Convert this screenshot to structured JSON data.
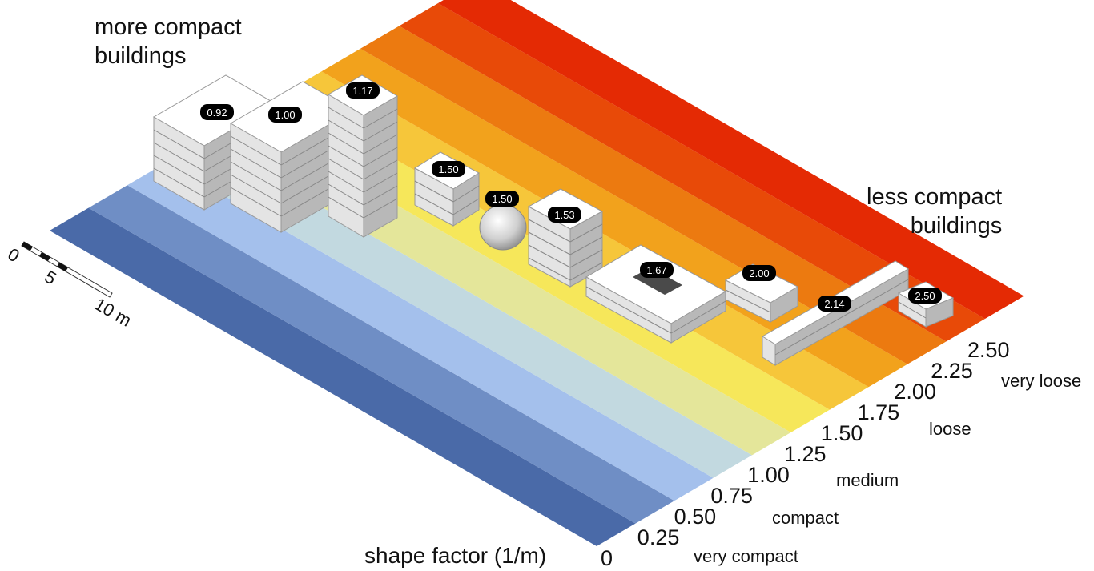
{
  "titles": {
    "more_compact_line1": "more compact",
    "more_compact_line2": "buildings",
    "less_compact_line1": "less compact",
    "less_compact_line2": "buildings",
    "axis_title": "shape factor (1/m)"
  },
  "scale_bar": {
    "labels": [
      "0",
      "5",
      "10 m"
    ]
  },
  "axis_ticks": [
    "0",
    "0.25",
    "0.50",
    "0.75",
    "1.00",
    "1.25",
    "1.50",
    "1.75",
    "2.00",
    "2.25",
    "2.50"
  ],
  "categories": [
    "very compact",
    "compact",
    "medium",
    "loose",
    "very loose"
  ],
  "band_colors": [
    "#4a6aa8",
    "#6f8ec5",
    "#a4c0ec",
    "#c2d9e0",
    "#e4e69a",
    "#f6e75a",
    "#f6c63a",
    "#f2a21c",
    "#ec7a10",
    "#e84a08",
    "#e42a04"
  ],
  "buildings": [
    {
      "label": "0.92",
      "shape": "box"
    },
    {
      "label": "1.00",
      "shape": "box"
    },
    {
      "label": "1.17",
      "shape": "tower"
    },
    {
      "label": "1.50",
      "shape": "box"
    },
    {
      "label": "1.50",
      "shape": "sphere"
    },
    {
      "label": "1.53",
      "shape": "cross"
    },
    {
      "label": "1.67",
      "shape": "courtyard"
    },
    {
      "label": "2.00",
      "shape": "lshape"
    },
    {
      "label": "2.14",
      "shape": "slab"
    },
    {
      "label": "2.50",
      "shape": "box"
    }
  ]
}
